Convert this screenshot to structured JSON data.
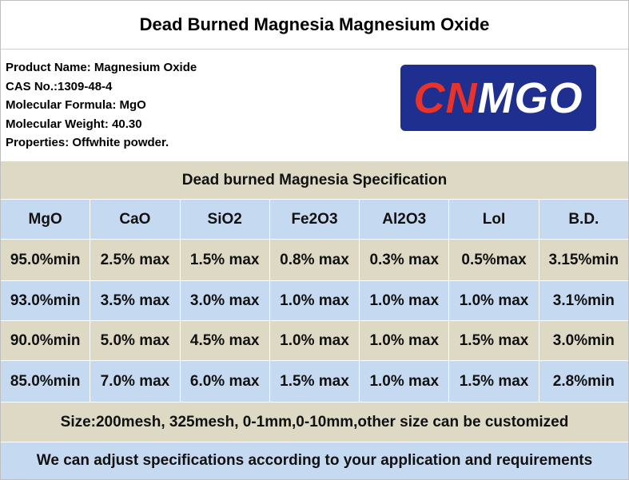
{
  "title": "Dead Burned Magnesia Magnesium Oxide",
  "info": [
    "Product Name: Magnesium Oxide",
    "CAS No.:1309-48-4",
    "Molecular Formula: MgO",
    "Molecular Weight: 40.30",
    "Properties: Offwhite powder."
  ],
  "logo": {
    "part1": "CN",
    "part2": "MGO"
  },
  "table": {
    "title": "Dead burned Magnesia Specification",
    "header": [
      "MgO",
      "CaO",
      "SiO2",
      "Fe2O3",
      "Al2O3",
      "LoI",
      "B.D."
    ],
    "rows": [
      [
        "95.0%min",
        "2.5% max",
        "1.5% max",
        "0.8% max",
        "0.3% max",
        "0.5%max",
        "3.15%min"
      ],
      [
        "93.0%min",
        "3.5% max",
        "3.0% max",
        "1.0% max",
        "1.0% max",
        "1.0% max",
        "3.1%min"
      ],
      [
        "90.0%min",
        "5.0% max",
        "4.5% max",
        "1.0% max",
        "1.0% max",
        "1.5% max",
        "3.0%min"
      ],
      [
        "85.0%min",
        "7.0% max",
        "6.0% max",
        "1.5% max",
        "1.0% max",
        "1.5% max",
        "2.8%min"
      ]
    ]
  },
  "notes": [
    "Size:200mesh, 325mesh, 0-1mm,0-10mm,other size can be customized",
    "We can adjust specifications according to your application and requirements"
  ]
}
